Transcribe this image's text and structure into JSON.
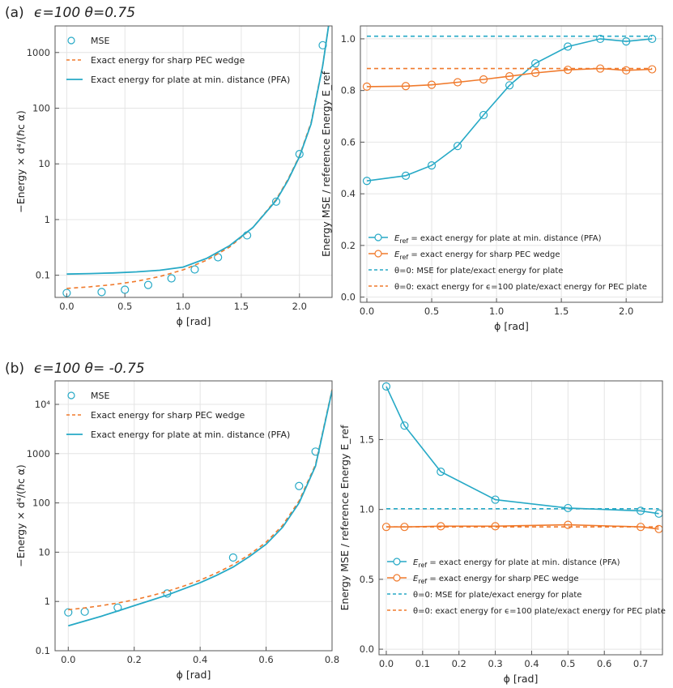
{
  "panels": [
    {
      "label": "(a)",
      "params": "ϵ=100  θ=0.75"
    },
    {
      "label": "(b)",
      "params": "ϵ=100  θ= -0.75"
    }
  ],
  "colors": {
    "mse": "#26a9c6",
    "pec": "#f07a2c",
    "axis": "#555555",
    "grid": "#e4e4e4"
  },
  "chart_data": [
    {
      "type": "scatter",
      "panel": "(a) left",
      "xlabel": "ϕ [rad]",
      "ylabel": "−Energy × d⁴/(ℏc α)",
      "yscale": "log",
      "xlim": [
        -0.1,
        2.28
      ],
      "ylim": [
        0.04,
        3000
      ],
      "xticks": [
        0.0,
        0.5,
        1.0,
        1.5,
        2.0
      ],
      "xtick_labels": [
        "0.0",
        "0.5",
        "1.0",
        "1.5",
        "2.0"
      ],
      "yticks": [
        0.1,
        1,
        10,
        100,
        1000
      ],
      "ytick_labels": [
        "0.1",
        "1",
        "10",
        "100",
        "1000"
      ],
      "grid": true,
      "legend_position": "top-left",
      "series": [
        {
          "name": "MSE",
          "style": "markers",
          "color": "#26a9c6",
          "x": [
            0.0,
            0.3,
            0.5,
            0.7,
            0.9,
            1.1,
            1.3,
            1.55,
            1.8,
            2.0,
            2.2
          ],
          "y": [
            0.048,
            0.05,
            0.055,
            0.067,
            0.088,
            0.127,
            0.21,
            0.52,
            2.1,
            15,
            1350
          ]
        },
        {
          "name": "Exact energy for sharp PEC wedge",
          "style": "dashed",
          "color": "#f07a2c",
          "x": [
            0.0,
            0.2,
            0.4,
            0.6,
            0.8,
            1.0,
            1.2,
            1.4,
            1.6,
            1.8,
            1.9,
            2.0,
            2.1,
            2.2,
            2.25
          ],
          "y": [
            0.058,
            0.062,
            0.068,
            0.078,
            0.095,
            0.125,
            0.185,
            0.32,
            0.72,
            2.3,
            5.2,
            14,
            55,
            600,
            3000
          ]
        },
        {
          "name": "Exact energy for plate at min. distance (PFA)",
          "style": "solid",
          "color": "#26a9c6",
          "x": [
            0.0,
            0.2,
            0.4,
            0.6,
            0.8,
            1.0,
            1.2,
            1.4,
            1.6,
            1.8,
            1.9,
            2.0,
            2.1,
            2.2,
            2.25
          ],
          "y": [
            0.105,
            0.107,
            0.11,
            0.115,
            0.123,
            0.14,
            0.2,
            0.34,
            0.72,
            2.2,
            5.0,
            13.5,
            52,
            580,
            3000
          ]
        }
      ]
    },
    {
      "type": "line",
      "panel": "(a) right",
      "xlabel": "ϕ [rad]",
      "ylabel": "Energy MSE / reference Energy E_ref",
      "xlim": [
        -0.05,
        2.28
      ],
      "ylim": [
        -0.02,
        1.05
      ],
      "xticks": [
        0.0,
        0.5,
        1.0,
        1.5,
        2.0
      ],
      "xtick_labels": [
        "0.0",
        "0.5",
        "1.0",
        "1.5",
        "2.0"
      ],
      "yticks": [
        0.0,
        0.2,
        0.4,
        0.6,
        0.8,
        1.0
      ],
      "ytick_labels": [
        "0.0",
        "0.2",
        "0.4",
        "0.6",
        "0.8",
        "1.0"
      ],
      "grid": true,
      "legend_position": "bottom",
      "series": [
        {
          "name": "E_ref = exact energy for plate at min. distance (PFA)",
          "style": "line-markers",
          "color": "#26a9c6",
          "x": [
            0.0,
            0.3,
            0.5,
            0.7,
            0.9,
            1.1,
            1.3,
            1.55,
            1.8,
            2.0,
            2.2
          ],
          "y": [
            0.45,
            0.47,
            0.51,
            0.585,
            0.705,
            0.82,
            0.905,
            0.97,
            1.0,
            0.99,
            1.0
          ]
        },
        {
          "name": "E_ref = exact energy for sharp PEC wedge",
          "style": "line-markers",
          "color": "#f07a2c",
          "x": [
            0.0,
            0.3,
            0.5,
            0.7,
            0.9,
            1.1,
            1.3,
            1.55,
            1.8,
            2.0,
            2.2
          ],
          "y": [
            0.815,
            0.817,
            0.822,
            0.832,
            0.843,
            0.855,
            0.868,
            0.88,
            0.885,
            0.878,
            0.882
          ]
        },
        {
          "name": "θ=0: MSE for plate/exact energy for plate",
          "style": "dashed-hline",
          "color": "#26a9c6",
          "x": [
            0.0,
            2.2
          ],
          "y": [
            1.01,
            1.01
          ]
        },
        {
          "name": "θ=0: exact energy for ϵ=100 plate/exact energy for PEC plate",
          "style": "dashed-hline",
          "color": "#f07a2c",
          "x": [
            0.0,
            2.2
          ],
          "y": [
            0.885,
            0.885
          ]
        }
      ]
    },
    {
      "type": "scatter",
      "panel": "(b) left",
      "xlabel": "ϕ [rad]",
      "ylabel": "−Energy × d⁴/(ℏc α)",
      "yscale": "log",
      "xlim": [
        -0.04,
        0.8
      ],
      "ylim": [
        0.1,
        30000
      ],
      "xticks": [
        0.0,
        0.2,
        0.4,
        0.6,
        0.8
      ],
      "xtick_labels": [
        "0.0",
        "0.2",
        "0.4",
        "0.6",
        "0.8"
      ],
      "yticks": [
        0.1,
        1,
        10,
        100,
        1000,
        10000
      ],
      "ytick_labels": [
        "0.1",
        "1",
        "10",
        "100",
        "1000",
        "10⁴"
      ],
      "grid": true,
      "legend_position": "top-left",
      "series": [
        {
          "name": "MSE",
          "style": "markers",
          "color": "#26a9c6",
          "x": [
            0.0,
            0.05,
            0.15,
            0.3,
            0.5,
            0.7,
            0.75
          ],
          "y": [
            0.6,
            0.62,
            0.75,
            1.45,
            7.8,
            220,
            1100
          ]
        },
        {
          "name": "Exact energy for sharp PEC wedge",
          "style": "dashed",
          "color": "#f07a2c",
          "x": [
            0.0,
            0.05,
            0.1,
            0.15,
            0.2,
            0.25,
            0.3,
            0.35,
            0.4,
            0.45,
            0.5,
            0.55,
            0.6,
            0.65,
            0.7,
            0.75,
            0.8
          ],
          "y": [
            0.68,
            0.74,
            0.82,
            0.93,
            1.08,
            1.3,
            1.6,
            2.05,
            2.7,
            3.8,
            5.6,
            9,
            16,
            35,
            110,
            600,
            20000
          ]
        },
        {
          "name": "Exact energy for plate at min. distance (PFA)",
          "style": "solid",
          "color": "#26a9c6",
          "x": [
            0.0,
            0.05,
            0.1,
            0.15,
            0.2,
            0.25,
            0.3,
            0.35,
            0.4,
            0.45,
            0.5,
            0.55,
            0.6,
            0.65,
            0.7,
            0.75,
            0.8
          ],
          "y": [
            0.32,
            0.4,
            0.5,
            0.64,
            0.82,
            1.05,
            1.35,
            1.8,
            2.4,
            3.4,
            5.0,
            8.2,
            14.5,
            32,
            100,
            560,
            19000
          ]
        }
      ]
    },
    {
      "type": "line",
      "panel": "(b) right",
      "xlabel": "ϕ [rad]",
      "ylabel": "Energy MSE / reference Energy E_ref",
      "xlim": [
        -0.02,
        0.76
      ],
      "ylim": [
        -0.04,
        1.92
      ],
      "xticks": [
        0.0,
        0.1,
        0.2,
        0.3,
        0.4,
        0.5,
        0.6,
        0.7
      ],
      "xtick_labels": [
        "0.0",
        "0.1",
        "0.2",
        "0.3",
        "0.4",
        "0.5",
        "0.6",
        "0.7"
      ],
      "yticks": [
        0.0,
        0.5,
        1.0,
        1.5
      ],
      "ytick_labels": [
        "0.0",
        "0.5",
        "1.0",
        "1.5"
      ],
      "grid": true,
      "legend_position": "bottom-left",
      "series": [
        {
          "name": "E_ref = exact energy for plate at min. distance (PFA)",
          "style": "line-markers",
          "color": "#26a9c6",
          "x": [
            0.0,
            0.05,
            0.15,
            0.3,
            0.5,
            0.7,
            0.75
          ],
          "y": [
            1.88,
            1.6,
            1.27,
            1.07,
            1.01,
            0.99,
            0.97
          ]
        },
        {
          "name": "E_ref = exact energy for sharp PEC wedge",
          "style": "line-markers",
          "color": "#f07a2c",
          "x": [
            0.0,
            0.05,
            0.15,
            0.3,
            0.5,
            0.7,
            0.75
          ],
          "y": [
            0.875,
            0.875,
            0.88,
            0.88,
            0.89,
            0.875,
            0.86
          ]
        },
        {
          "name": "θ=0: MSE for plate/exact energy for plate",
          "style": "dashed-hline",
          "color": "#26a9c6",
          "x": [
            0.0,
            0.75
          ],
          "y": [
            1.005,
            1.005
          ]
        },
        {
          "name": "θ=0: exact energy for ϵ=100 plate/exact energy for PEC plate",
          "style": "dashed-hline",
          "color": "#f07a2c",
          "x": [
            0.0,
            0.75
          ],
          "y": [
            0.875,
            0.875
          ]
        }
      ]
    }
  ]
}
